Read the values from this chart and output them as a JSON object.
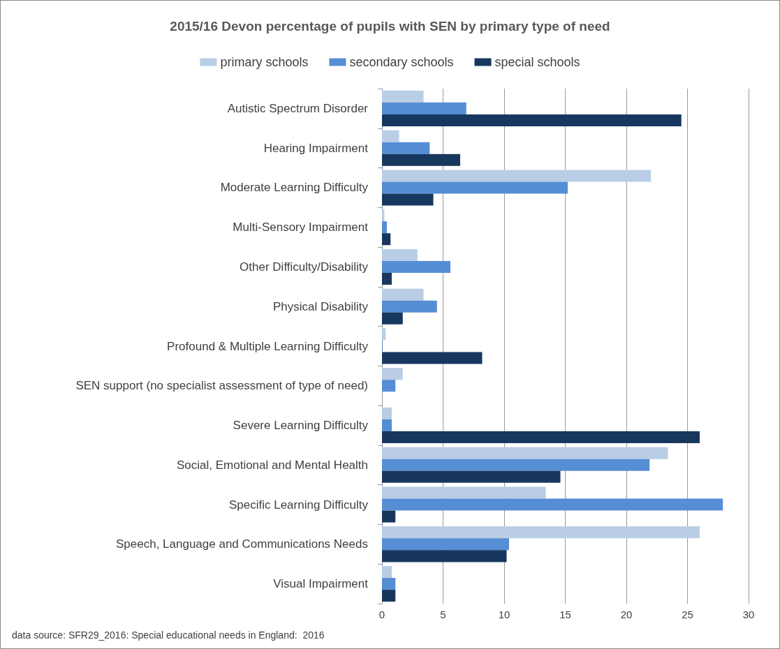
{
  "chart_data": {
    "type": "bar",
    "orientation": "horizontal",
    "title": "2015/16 Devon percentage of pupils with SEN by primary type of need",
    "categories": [
      "Autistic Spectrum Disorder",
      "Hearing Impairment",
      "Moderate Learning Difficulty",
      "Multi-Sensory Impairment",
      "Other Difficulty/Disability",
      "Physical Disability",
      "Profound & Multiple Learning Difficulty",
      "SEN support (no specialist assessment of type of need)",
      "Severe Learning Difficulty",
      "Social, Emotional and Mental Health",
      "Specific Learning Difficulty",
      "Speech, Language and Communications Needs",
      "Visual Impairment"
    ],
    "series": [
      {
        "name": "primary schools",
        "color": "#b9cde5",
        "values": [
          3.4,
          1.4,
          22.0,
          0.2,
          2.9,
          3.4,
          0.3,
          1.7,
          0.8,
          23.4,
          13.4,
          26.0,
          0.8
        ]
      },
      {
        "name": "secondary schools",
        "color": "#558ed5",
        "values": [
          6.9,
          3.9,
          15.2,
          0.4,
          5.6,
          4.5,
          0.05,
          1.1,
          0.8,
          21.9,
          27.9,
          10.4,
          1.1
        ]
      },
      {
        "name": "special schools",
        "color": "#17375e",
        "values": [
          24.5,
          6.4,
          4.2,
          0.7,
          0.8,
          1.7,
          8.2,
          null,
          26.0,
          14.6,
          1.1,
          10.2,
          1.1
        ]
      }
    ],
    "xlim": [
      0,
      30
    ],
    "xticks": [
      0,
      5,
      10,
      15,
      20,
      25,
      30
    ],
    "grid": "x",
    "legend": "top",
    "annotations": [
      "data source: SFR29_2016: Special educational needs in England:  2016"
    ]
  }
}
